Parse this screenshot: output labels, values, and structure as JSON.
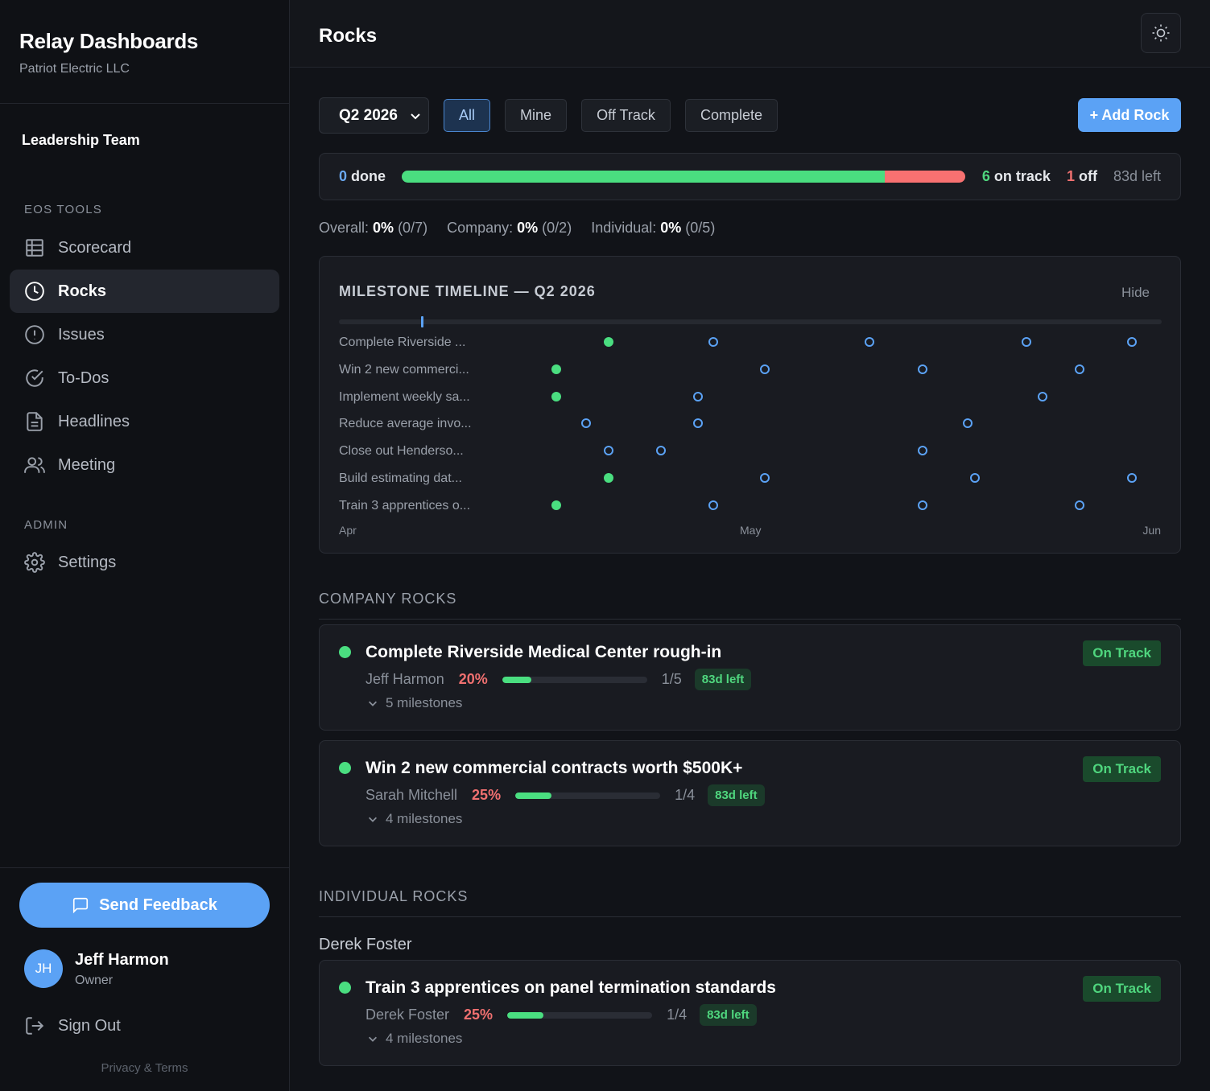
{
  "app": {
    "title": "Relay Dashboards",
    "company": "Patriot Electric LLC",
    "team": "Leadership Team"
  },
  "sidebar": {
    "section_tools": "EOS TOOLS",
    "section_admin": "ADMIN",
    "items": [
      {
        "label": "Scorecard",
        "icon": "table-icon"
      },
      {
        "label": "Rocks",
        "icon": "clock-icon",
        "active": true
      },
      {
        "label": "Issues",
        "icon": "alert-circle-icon"
      },
      {
        "label": "To-Dos",
        "icon": "check-circle-icon"
      },
      {
        "label": "Headlines",
        "icon": "document-icon"
      },
      {
        "label": "Meeting",
        "icon": "users-icon"
      }
    ],
    "admin_items": [
      {
        "label": "Settings",
        "icon": "gear-icon"
      }
    ],
    "feedback_label": "Send Feedback",
    "user": {
      "initials": "JH",
      "name": "Jeff Harmon",
      "role": "Owner"
    },
    "signout_label": "Sign Out",
    "privacy_label": "Privacy & Terms"
  },
  "header": {
    "title": "Rocks"
  },
  "toolbar": {
    "quarter": "Q2 2026",
    "filters": [
      "All",
      "Mine",
      "Off Track",
      "Complete"
    ],
    "active_filter": "All",
    "add_label": "+ Add Rock"
  },
  "summary": {
    "done_count": "0",
    "done_label": "done",
    "on_track_count": "6",
    "on_track_label": "on track",
    "off_count": "1",
    "off_label": "off",
    "days_left": "83d left",
    "on_track_fraction": 0.857,
    "off_fraction": 0.143
  },
  "stats": {
    "overall_label": "Overall:",
    "overall_pct": "0%",
    "overall_count": "(0/7)",
    "company_label": "Company:",
    "company_pct": "0%",
    "company_count": "(0/2)",
    "individual_label": "Individual:",
    "individual_pct": "0%",
    "individual_count": "(0/5)"
  },
  "timeline": {
    "title": "MILESTONE TIMELINE — Q2 2026",
    "hide_label": "Hide",
    "axis": [
      "Apr",
      "May",
      "Jun"
    ],
    "today_fraction": 0.1,
    "rows": [
      {
        "label": "Complete Riverside ...",
        "milestones": [
          {
            "t": 0.328,
            "done": true
          },
          {
            "t": 0.455,
            "done": false
          },
          {
            "t": 0.645,
            "done": false
          },
          {
            "t": 0.836,
            "done": false
          },
          {
            "t": 0.964,
            "done": false
          }
        ]
      },
      {
        "label": "Win 2 new commerci...",
        "milestones": [
          {
            "t": 0.264,
            "done": true
          },
          {
            "t": 0.518,
            "done": false
          },
          {
            "t": 0.709,
            "done": false
          },
          {
            "t": 0.9,
            "done": false
          }
        ]
      },
      {
        "label": "Implement weekly sa...",
        "milestones": [
          {
            "t": 0.264,
            "done": true
          },
          {
            "t": 0.436,
            "done": false
          },
          {
            "t": 0.855,
            "done": false
          }
        ]
      },
      {
        "label": "Reduce average invo...",
        "milestones": [
          {
            "t": 0.3,
            "done": false
          },
          {
            "t": 0.436,
            "done": false
          },
          {
            "t": 0.764,
            "done": false
          }
        ]
      },
      {
        "label": "Close out Henderso...",
        "milestones": [
          {
            "t": 0.328,
            "done": false
          },
          {
            "t": 0.391,
            "done": false
          },
          {
            "t": 0.709,
            "done": false
          }
        ]
      },
      {
        "label": "Build estimating dat...",
        "milestones": [
          {
            "t": 0.328,
            "done": true
          },
          {
            "t": 0.518,
            "done": false
          },
          {
            "t": 0.773,
            "done": false
          },
          {
            "t": 0.964,
            "done": false
          }
        ]
      },
      {
        "label": "Train 3 apprentices o...",
        "milestones": [
          {
            "t": 0.264,
            "done": true
          },
          {
            "t": 0.455,
            "done": false
          },
          {
            "t": 0.709,
            "done": false
          },
          {
            "t": 0.9,
            "done": false
          }
        ]
      }
    ]
  },
  "company_rocks": {
    "label": "COMPANY ROCKS",
    "items": [
      {
        "title": "Complete Riverside Medical Center rough-in",
        "owner": "Jeff Harmon",
        "pct": "20%",
        "progress": 0.2,
        "count": "1/5",
        "days": "83d left",
        "milestones": "5 milestones",
        "status": "On Track"
      },
      {
        "title": "Win 2 new commercial contracts worth $500K+",
        "owner": "Sarah Mitchell",
        "pct": "25%",
        "progress": 0.25,
        "count": "1/4",
        "days": "83d left",
        "milestones": "4 milestones",
        "status": "On Track"
      }
    ]
  },
  "individual_rocks": {
    "label": "INDIVIDUAL ROCKS",
    "owner_heading": "Derek Foster",
    "items": [
      {
        "title": "Train 3 apprentices on panel termination standards",
        "owner": "Derek Foster",
        "pct": "25%",
        "progress": 0.25,
        "count": "1/4",
        "days": "83d left",
        "milestones": "4 milestones",
        "status": "On Track"
      }
    ]
  }
}
